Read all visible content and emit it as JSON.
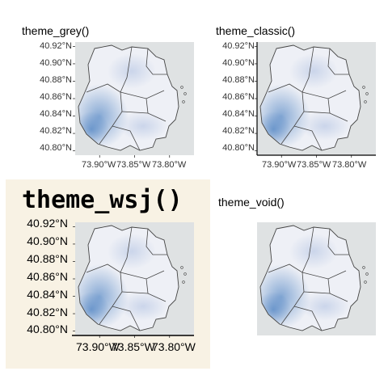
{
  "chart_data": [
    {
      "type": "heatmap",
      "title": "theme_grey()",
      "yticks": [
        "40.92°N",
        "40.90°N",
        "40.88°N",
        "40.86°N",
        "40.84°N",
        "40.82°N",
        "40.80°N"
      ],
      "ytick_values": [
        40.92,
        40.9,
        40.88,
        40.86,
        40.84,
        40.82,
        40.8
      ],
      "xticks": [
        "73.90°W",
        "73.85°W",
        "73.80°W"
      ],
      "xtick_values": [
        -73.9,
        -73.85,
        -73.8
      ],
      "xlim": [
        -73.935,
        -73.765
      ],
      "ylim": [
        40.795,
        40.925
      ],
      "axis_lines": false
    },
    {
      "type": "heatmap",
      "title": "theme_classic()",
      "yticks": [
        "40.92°N",
        "40.90°N",
        "40.88°N",
        "40.86°N",
        "40.84°N",
        "40.82°N",
        "40.80°N"
      ],
      "ytick_values": [
        40.92,
        40.9,
        40.88,
        40.86,
        40.84,
        40.82,
        40.8
      ],
      "xticks": [
        "73.90°W",
        "73.85°W",
        "73.80°W"
      ],
      "xtick_values": [
        -73.9,
        -73.85,
        -73.8
      ],
      "xlim": [
        -73.935,
        -73.765
      ],
      "ylim": [
        40.795,
        40.925
      ],
      "axis_lines": true
    },
    {
      "type": "heatmap",
      "title": "theme_wsj()",
      "yticks": [
        "40.92°N",
        "40.90°N",
        "40.88°N",
        "40.86°N",
        "40.84°N",
        "40.82°N",
        "40.80°N"
      ],
      "ytick_values": [
        40.92,
        40.9,
        40.88,
        40.86,
        40.84,
        40.82,
        40.8
      ],
      "xticks": [
        "73.90°W",
        "73.85°W",
        "73.80°W"
      ],
      "xtick_values": [
        -73.9,
        -73.85,
        -73.8
      ],
      "xlim": [
        -73.935,
        -73.765
      ],
      "ylim": [
        40.795,
        40.925
      ],
      "background": "#f8f2e4",
      "axis_lines": "bottom"
    },
    {
      "type": "heatmap",
      "title": "theme_void()",
      "yticks": [],
      "xticks": [],
      "xlim": [
        -73.935,
        -73.765
      ],
      "ylim": [
        40.795,
        40.925
      ],
      "axis_lines": false
    }
  ],
  "colors": {
    "map_bg": "#dfe2e3",
    "land": "#eef0f6",
    "density": "#2f6db8",
    "borough_lines": "#444444",
    "wsj_bg": "#f8f2e4"
  }
}
